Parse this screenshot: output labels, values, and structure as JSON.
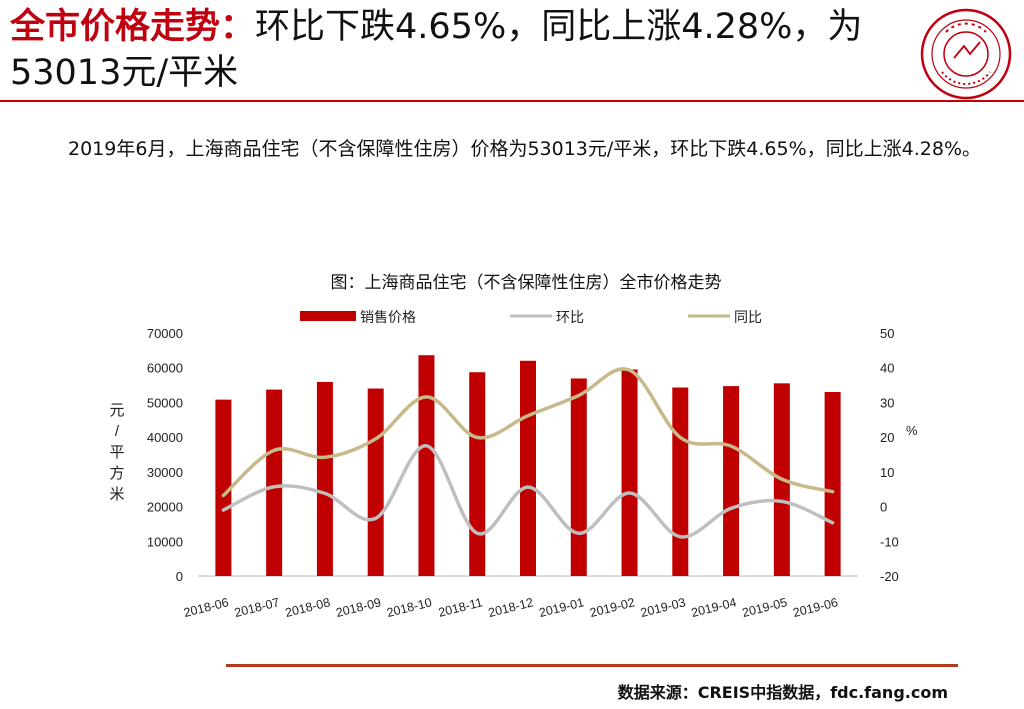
{
  "header": {
    "title_highlight": "全市价格走势：",
    "title_rest": "环比下跌4.65%，同比上涨4.28%，为53013元/平米"
  },
  "seal": {
    "icon": "china-index-academy-seal-icon",
    "color": "#c0000f"
  },
  "summary": {
    "text": "2019年6月，上海商品住宅（不含保障性住房）价格为53013元/平米，环比下跌4.65%，同比上涨4.28%。"
  },
  "footer": {
    "source": "数据来源：CREIS中指数据，fdc.fang.com"
  },
  "chart_data": {
    "type": "bar",
    "title": "图：上海商品住宅（不含保障性住房）全市价格走势",
    "categories": [
      "2018-06",
      "2018-07",
      "2018-08",
      "2018-09",
      "2018-10",
      "2018-11",
      "2018-12",
      "2019-01",
      "2019-02",
      "2019-03",
      "2019-04",
      "2019-05",
      "2019-06"
    ],
    "ylabel": "元/平方米",
    "y2label": "%",
    "ylim": [
      0,
      70000
    ],
    "y2lim": [
      -20,
      50
    ],
    "yticks": [
      "0",
      "10000",
      "20000",
      "30000",
      "40000",
      "50000",
      "60000",
      "70000"
    ],
    "y2ticks": [
      "-20",
      "-10",
      "0",
      "10",
      "20",
      "30",
      "40",
      "50"
    ],
    "legend_position": "top",
    "grid": false,
    "series": [
      {
        "name": "销售价格",
        "type": "bar",
        "axis": "left",
        "color": "#c00000",
        "values": [
          50800,
          53700,
          55900,
          54000,
          63600,
          58700,
          62000,
          56900,
          59500,
          54300,
          54700,
          55500,
          53013
        ]
      },
      {
        "name": "环比",
        "type": "line",
        "axis": "right",
        "color": "#bfbfbf",
        "values": [
          -1,
          5.7,
          3.8,
          -3.4,
          17.5,
          -7.7,
          5.6,
          -7.7,
          3.9,
          -8.7,
          -0.5,
          1.5,
          -4.65
        ]
      },
      {
        "name": "同比",
        "type": "line",
        "axis": "right",
        "color": "#c7b98a",
        "values": [
          3.2,
          16.2,
          14.2,
          19.5,
          31.6,
          19.9,
          26.2,
          32,
          39.3,
          19.9,
          17.4,
          7.9,
          4.28
        ]
      }
    ]
  }
}
